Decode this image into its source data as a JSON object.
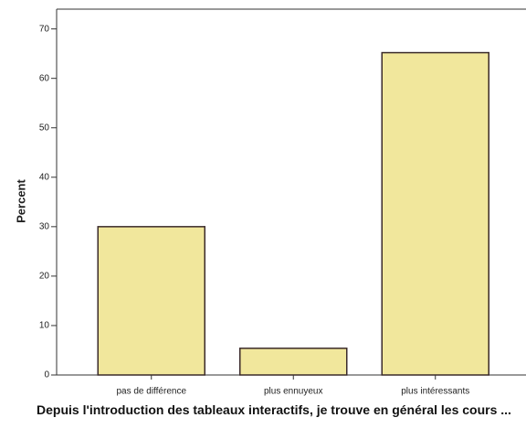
{
  "chart_data": {
    "type": "bar",
    "categories": [
      "pas de différence",
      "plus ennuyeux",
      "plus intéressants"
    ],
    "values": [
      30,
      5.4,
      65.2
    ],
    "color": "#f1e79c",
    "ylabel": "Percent",
    "xlabel": "Depuis l'introduction des tableaux interactifs, je trouve en général les cours ...",
    "ylim": [
      0,
      74
    ],
    "yticks": [
      0,
      10,
      20,
      30,
      40,
      50,
      60,
      70
    ]
  }
}
